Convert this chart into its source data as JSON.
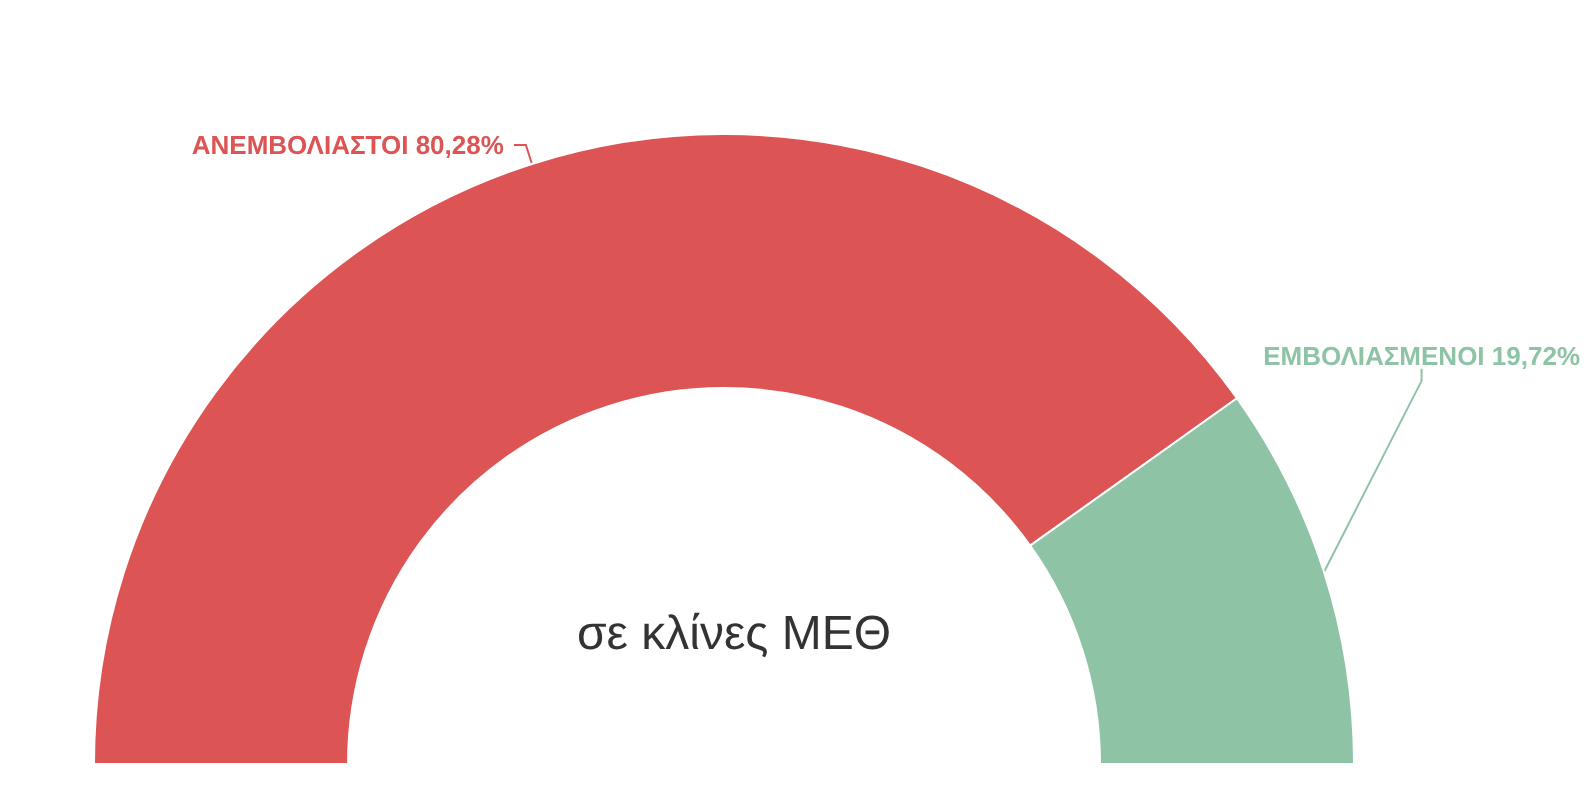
{
  "chart_data": {
    "type": "donut",
    "title": "σε κλίνες ΜΕΘ",
    "categories": [
      "ΑΝΕΜΒΟΛΙΑΣΤΟΙ",
      "ΕΜΒΟΛΙΑΣΜΕΝΟΙ"
    ],
    "values": [
      80.28,
      19.72
    ],
    "value_labels": [
      "80,28%",
      "19,72%"
    ],
    "colors": [
      "#dc5454",
      "#8fc3a6"
    ],
    "legend": false
  }
}
